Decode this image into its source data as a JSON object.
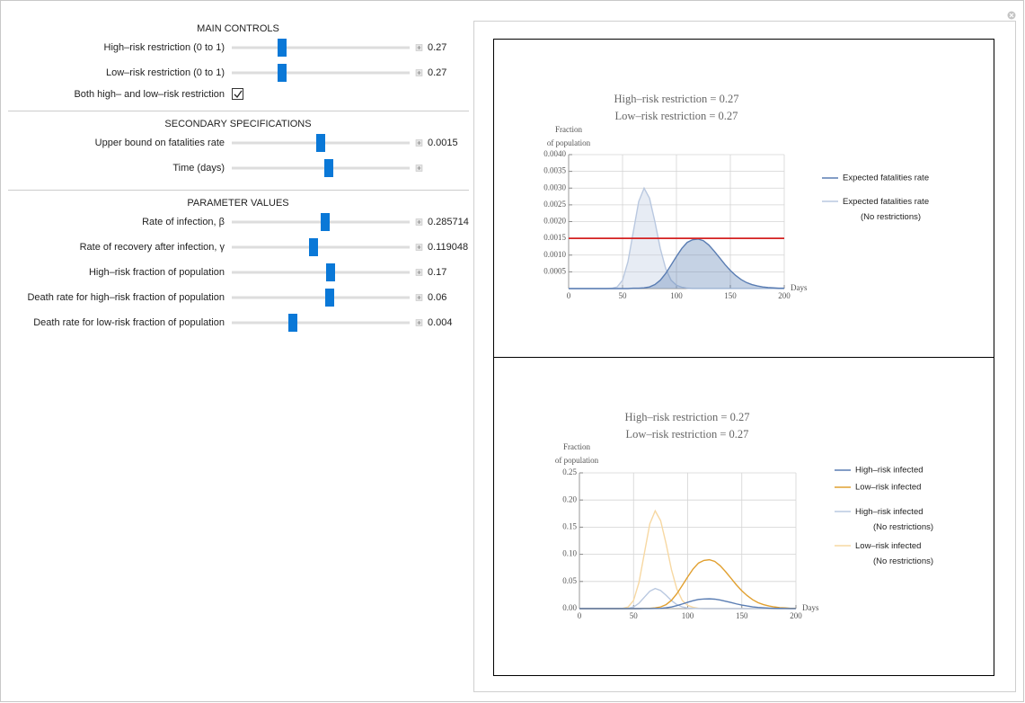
{
  "controls": {
    "sections": [
      {
        "title": "MAIN CONTROLS",
        "items": [
          {
            "label": "High–risk restriction (0 to 1)",
            "value": "0.27"
          },
          {
            "label": "Low–risk restriction (0 to 1)",
            "value": "0.27"
          },
          {
            "label": "Both high– and low–risk restriction",
            "checked": true
          }
        ]
      },
      {
        "title": "SECONDARY SPECIFICATIONS",
        "items": [
          {
            "label": "Upper bound on fatalities rate",
            "value": "0.0015"
          },
          {
            "label": "Time (days)"
          }
        ]
      },
      {
        "title": "PARAMETER VALUES",
        "items": [
          {
            "label": "Rate of infection, β",
            "value": "0.285714"
          },
          {
            "label": "Rate of recovery after infection, γ",
            "value": "0.119048"
          },
          {
            "label": "High–risk fraction of population",
            "value": "0.17"
          },
          {
            "label": "Death rate for high–risk fraction of population",
            "value": "0.06"
          },
          {
            "label": "Death rate for low-risk fraction of population",
            "value": "0.004"
          }
        ]
      }
    ]
  },
  "chart_data": [
    {
      "type": "line",
      "title": [
        "High–risk restriction = 0.27",
        "Low–risk restriction = 0.27"
      ],
      "ylabel": [
        "Fraction",
        "of population"
      ],
      "xlabel": "Days",
      "fill": true,
      "grid": true,
      "xlim": [
        0,
        200
      ],
      "xticks": [
        0,
        50,
        100,
        150,
        200
      ],
      "ylim": [
        0,
        0.004
      ],
      "yticks": [
        0.0005,
        {
          "value": 0.001,
          "label": "0.0010"
        },
        0.0015,
        {
          "value": 0.002,
          "label": "0.0020"
        },
        0.0025,
        {
          "value": 0.003,
          "label": "0.0030"
        },
        0.0035,
        {
          "value": 0.004,
          "label": "0.0040"
        }
      ],
      "threshold": {
        "value": 0.0015,
        "color": "#d42020"
      },
      "x": [
        0,
        5,
        10,
        15,
        20,
        25,
        30,
        35,
        40,
        45,
        50,
        55,
        60,
        65,
        70,
        75,
        80,
        85,
        90,
        95,
        100,
        105,
        110,
        115,
        120,
        125,
        130,
        135,
        140,
        145,
        150,
        155,
        160,
        165,
        170,
        175,
        180,
        185,
        190,
        195,
        200
      ],
      "series": [
        {
          "name": "Expected fatalities rate",
          "color": "#5a7db3",
          "values": [
            0,
            0,
            0,
            0,
            0,
            0,
            0,
            0,
            0,
            0,
            0,
            0,
            1e-05,
            1e-05,
            2e-05,
            5e-05,
            0.00012,
            0.00025,
            0.00045,
            0.0007,
            0.00096,
            0.0012,
            0.00138,
            0.00146,
            0.00148,
            0.00143,
            0.0013,
            0.00112,
            0.00092,
            0.00072,
            0.00054,
            0.00039,
            0.00027,
            0.00018,
            0.00012,
            8e-05,
            5e-05,
            3e-05,
            2e-05,
            1e-05,
            1e-05
          ]
        },
        {
          "name": "Expected fatalities rate (No restrictions)",
          "color": "#b9c8e0",
          "values": [
            0,
            0,
            0,
            0,
            0,
            0,
            0,
            0,
            1e-05,
            5e-05,
            0.00025,
            0.0008,
            0.0017,
            0.0026,
            0.003,
            0.0027,
            0.002,
            0.0012,
            0.0006,
            0.00025,
            0.0001,
            4e-05,
            1e-05,
            0,
            0,
            0,
            0,
            0,
            0,
            0,
            0,
            0,
            0,
            0,
            0,
            0,
            0,
            0,
            0,
            0,
            0
          ]
        }
      ]
    },
    {
      "type": "line",
      "title": [
        "High–risk restriction = 0.27",
        "Low–risk restriction = 0.27"
      ],
      "ylabel": [
        "Fraction",
        "of population"
      ],
      "xlabel": "Days",
      "fill": false,
      "grid": true,
      "xlim": [
        0,
        200
      ],
      "xticks": [
        0,
        50,
        100,
        150,
        200
      ],
      "ylim": [
        0,
        0.25
      ],
      "yticks": [
        {
          "value": 0,
          "label": "0.00"
        },
        0.05,
        {
          "value": 0.1,
          "label": "0.10"
        },
        0.15,
        {
          "value": 0.2,
          "label": "0.20"
        },
        0.25
      ],
      "x": [
        0,
        5,
        10,
        15,
        20,
        25,
        30,
        35,
        40,
        45,
        50,
        55,
        60,
        65,
        70,
        75,
        80,
        85,
        90,
        95,
        100,
        105,
        110,
        115,
        120,
        125,
        130,
        135,
        140,
        145,
        150,
        155,
        160,
        165,
        170,
        175,
        180,
        185,
        190,
        195,
        200
      ],
      "series": [
        {
          "name": "High–risk infected",
          "color": "#5a7db3",
          "values": [
            0,
            0,
            0,
            0,
            0,
            0,
            0,
            0,
            0,
            0,
            0,
            0,
            0.0001,
            0.0001,
            0.0003,
            0.0006,
            0.0015,
            0.003,
            0.0055,
            0.0085,
            0.0117,
            0.0146,
            0.0168,
            0.0177,
            0.018,
            0.0174,
            0.0158,
            0.0136,
            0.0112,
            0.0087,
            0.0066,
            0.0048,
            0.0033,
            0.0022,
            0.0015,
            0.001,
            0.0006,
            0.0004,
            0.0003,
            0.0001,
            0.0001
          ]
        },
        {
          "name": "Low–risk infected",
          "color": "#e1a030",
          "values": [
            0,
            0,
            0,
            0,
            0,
            0,
            0,
            0,
            0,
            0,
            0,
            0,
            0.0006,
            0.0006,
            0.0013,
            0.0031,
            0.0073,
            0.0152,
            0.0274,
            0.0426,
            0.0584,
            0.073,
            0.0839,
            0.0887,
            0.09,
            0.0869,
            0.079,
            0.0681,
            0.056,
            0.0437,
            0.0329,
            0.0238,
            0.0164,
            0.011,
            0.0073,
            0.0049,
            0.0031,
            0.0018,
            0.0013,
            0.0006,
            0.0006
          ]
        },
        {
          "name": "High–risk infected (No restrictions)",
          "color": "#b9c8e0",
          "values": [
            0,
            0,
            0,
            0,
            0,
            0,
            0,
            0,
            0.0001,
            0.0006,
            0.003,
            0.0099,
            0.021,
            0.032,
            0.037,
            0.0333,
            0.0247,
            0.0148,
            0.0074,
            0.0031,
            0.0012,
            0.0005,
            0.0001,
            0,
            0,
            0,
            0,
            0,
            0,
            0,
            0,
            0,
            0,
            0,
            0,
            0,
            0,
            0,
            0,
            0,
            0
          ]
        },
        {
          "name": "Low–risk infected (No restrictions)",
          "color": "#f7d8a2",
          "values": [
            0,
            0,
            0,
            0,
            0,
            0,
            0,
            0,
            0.0005,
            0.003,
            0.015,
            0.048,
            0.102,
            0.156,
            0.18,
            0.162,
            0.12,
            0.072,
            0.036,
            0.015,
            0.006,
            0.0024,
            0.0005,
            0,
            0,
            0,
            0,
            0,
            0,
            0,
            0,
            0,
            0,
            0,
            0,
            0,
            0,
            0,
            0,
            0,
            0
          ]
        }
      ]
    }
  ]
}
